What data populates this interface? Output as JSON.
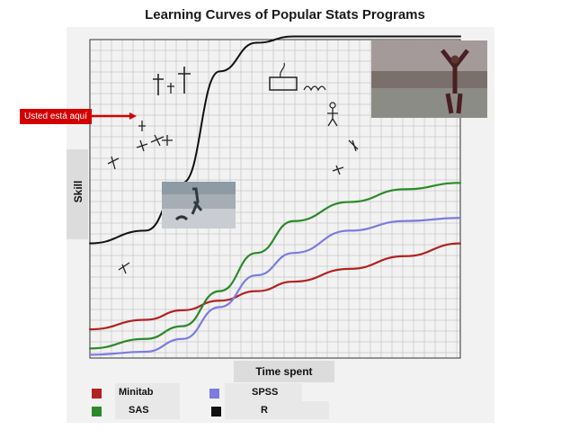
{
  "chart_data": {
    "type": "line",
    "title": "Learning Curves of Popular Stats Programs",
    "xlabel": "Time spent",
    "ylabel": "Skill",
    "annotation": "Usted está aquí",
    "grid": true,
    "legend_position": "bottom-left",
    "xlim": [
      0,
      10
    ],
    "ylim": [
      0,
      10
    ],
    "x": [
      0,
      1.5,
      2.5,
      3.5,
      4.5,
      5.5,
      7,
      8.5,
      10
    ],
    "series": [
      {
        "name": "Minitab",
        "color": "#b22222",
        "values": [
          0.9,
          1.2,
          1.5,
          1.8,
          2.1,
          2.4,
          2.8,
          3.2,
          3.6
        ]
      },
      {
        "name": "SPSS",
        "color": "#7b7be0",
        "values": [
          0.1,
          0.2,
          0.6,
          1.6,
          2.6,
          3.3,
          4.0,
          4.3,
          4.4
        ]
      },
      {
        "name": "SAS",
        "color": "#2a8a2a",
        "values": [
          0.3,
          0.6,
          1.0,
          2.1,
          3.3,
          4.3,
          4.9,
          5.3,
          5.5
        ]
      },
      {
        "name": "R",
        "color": "#111111",
        "values": [
          3.6,
          4.0,
          5.5,
          9.0,
          9.9,
          10.1,
          10.1,
          10.1,
          10.1
        ]
      }
    ]
  },
  "legend": [
    {
      "label": "Minitab",
      "color": "#b22222"
    },
    {
      "label": "SPSS",
      "color": "#7b7be0"
    },
    {
      "label": "SAS",
      "color": "#2a8a2a"
    },
    {
      "label": "R",
      "color": "#111111"
    }
  ]
}
